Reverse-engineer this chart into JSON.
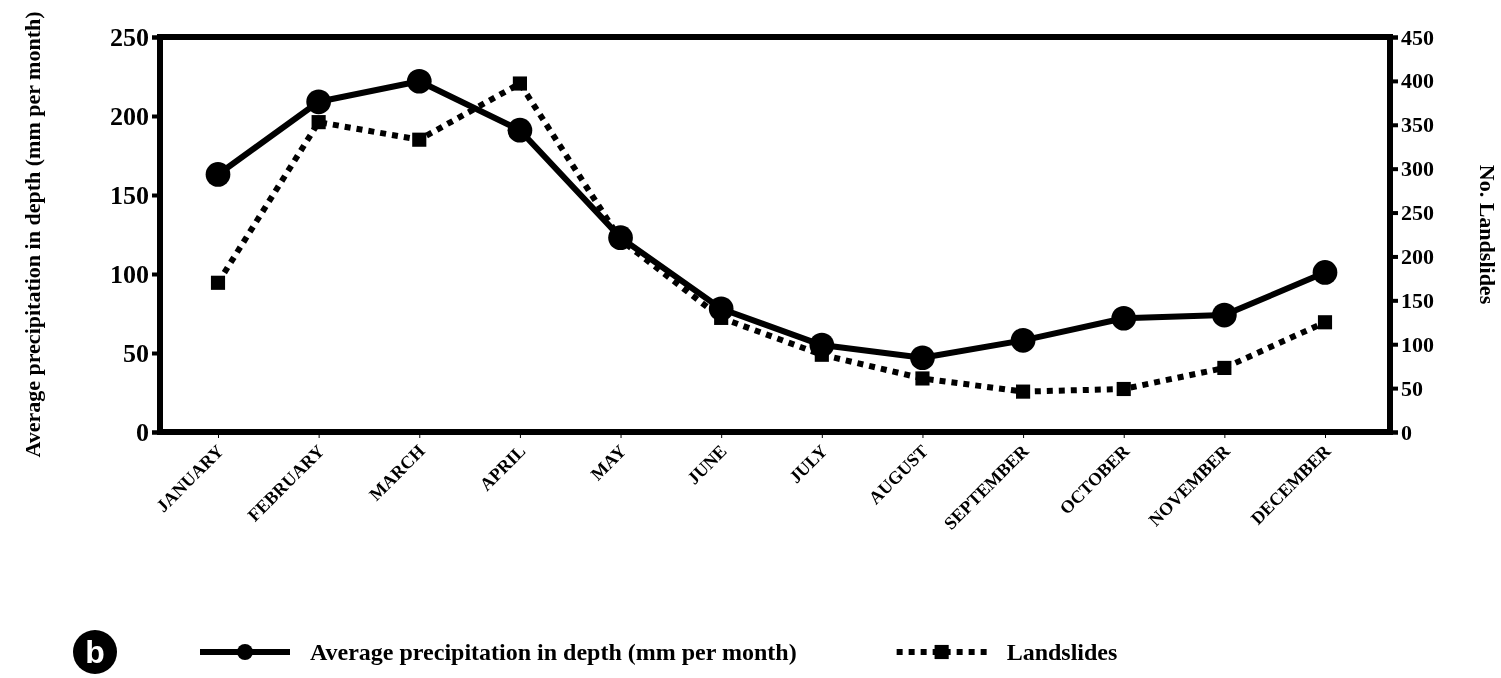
{
  "chart_data": {
    "type": "line",
    "ylabel": "Average precipitation in depth (mm per month)",
    "y2label": "No. Landslides",
    "annotations": [
      "b"
    ],
    "categories": [
      "JANUARY",
      "FEBRUARY",
      "MARCH",
      "APRIL",
      "MAY",
      "JUNE",
      "JULY",
      "AUGUST",
      "SEPTEMBER",
      "OCTOBER",
      "NOVEMBER",
      "DECEMBER"
    ],
    "series": [
      {
        "name": "Average precipitation in depth (mm per month)",
        "color": "#000000",
        "marker": "circle",
        "line_style": "solid",
        "values": [
          163,
          209,
          222,
          191,
          123,
          78,
          55,
          47,
          58,
          72,
          74,
          101
        ]
      },
      {
        "name": "Landslides",
        "color": "#000000",
        "marker": "square",
        "line_style": "dotted",
        "axis": "y2",
        "values": [
          170,
          353,
          333,
          397,
          219,
          130,
          88,
          61,
          46,
          49,
          73,
          125
        ]
      }
    ],
    "ylim": [
      0,
      250
    ],
    "yticks": [
      0,
      50,
      100,
      150,
      200,
      250
    ],
    "y2lim": [
      0,
      450
    ],
    "y2ticks": [
      0,
      50,
      100,
      150,
      200,
      250,
      300,
      350,
      400,
      450
    ],
    "grid": false,
    "legend": "bottom"
  }
}
